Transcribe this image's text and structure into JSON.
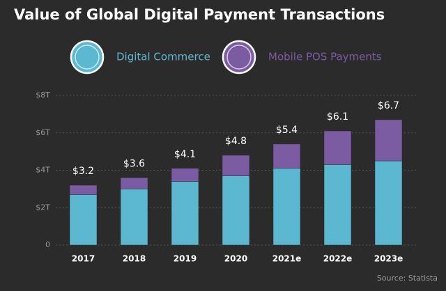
{
  "chart_data": {
    "type": "stacked_bar",
    "title": "Value of Global Digital Payment Transactions",
    "categories": [
      "2017",
      "2018",
      "2019",
      "2020",
      "2021e",
      "2022e",
      "2023e"
    ],
    "series": [
      {
        "name": "Digital Commerce",
        "color": "#5bb8d0",
        "values": [
          2.7,
          3.0,
          3.4,
          3.7,
          4.1,
          4.3,
          4.5
        ]
      },
      {
        "name": "Mobile POS Payments",
        "color": "#7b5ba1",
        "values": [
          0.5,
          0.6,
          0.7,
          1.1,
          1.3,
          1.8,
          2.2
        ]
      }
    ],
    "totals": [
      3.2,
      3.6,
      4.1,
      4.8,
      5.4,
      6.1,
      6.7
    ],
    "total_labels": [
      "$3.2",
      "$3.6",
      "$4.1",
      "$4.8",
      "$5.4",
      "$6.1",
      "$6.7"
    ],
    "ylim": [
      0,
      8
    ],
    "yticks": [
      0,
      {
        "value": 2,
        "label": "$2T"
      },
      {
        "value": 4,
        "label": "$4T"
      },
      {
        "value": 6,
        "label": "$6T"
      },
      {
        "value": 8,
        "label": "$8T"
      }
    ],
    "grid": true,
    "source": "Source: Statista"
  }
}
